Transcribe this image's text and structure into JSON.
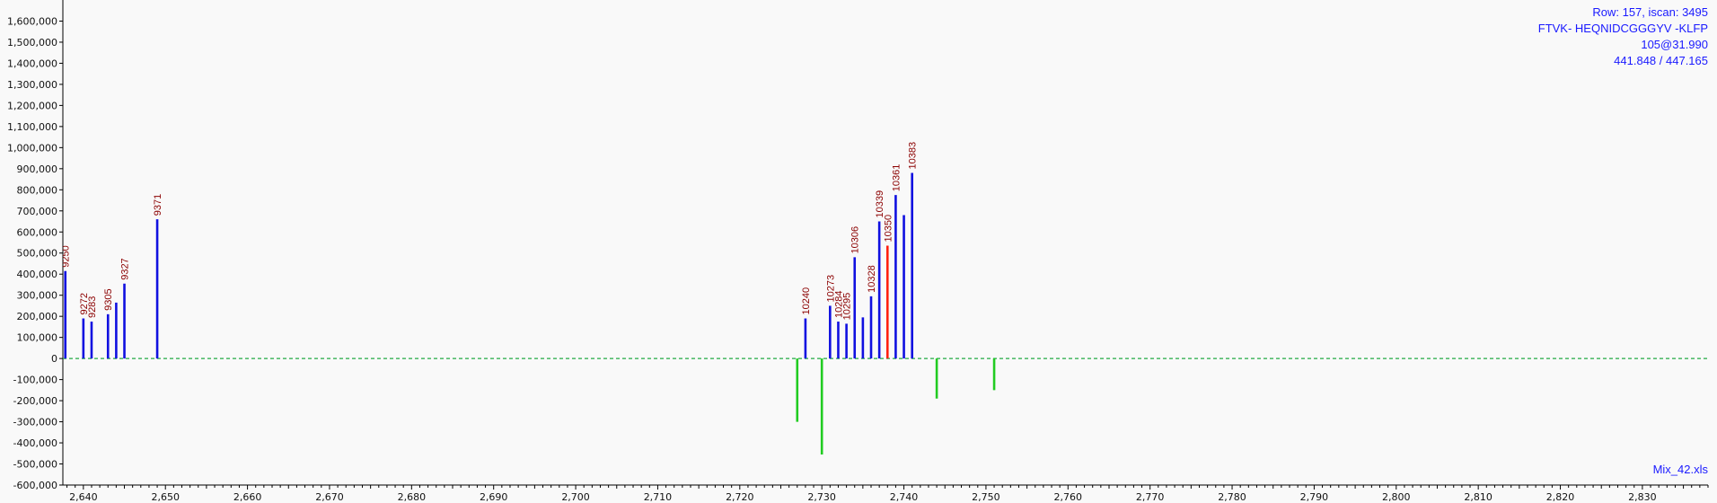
{
  "info": {
    "row_line": "Row: 157, iscan: 3495",
    "sequence_line": "FTVK- HEQNIDCGGGYV -KLFP",
    "charge_line": "105@31.990",
    "mz_line": "441.848 / 447.165"
  },
  "footer": {
    "filename": "Mix_42.xls"
  },
  "colors": {
    "positive": "#1010e0",
    "highlight": "#ff2010",
    "negative": "#22cc22",
    "baseline": "#22aa44",
    "label": "#8b0000"
  },
  "chart_data": {
    "type": "bar",
    "xlim": [
      2637.5,
      2838
    ],
    "ylim": [
      -600000,
      1700000
    ],
    "x_ticks": [
      2640,
      2650,
      2660,
      2670,
      2680,
      2690,
      2700,
      2710,
      2720,
      2730,
      2740,
      2750,
      2760,
      2770,
      2780,
      2790,
      2800,
      2810,
      2820,
      2830
    ],
    "x_tick_labels": [
      "2,640",
      "2,650",
      "2,660",
      "2,670",
      "2,680",
      "2,690",
      "2,700",
      "2,710",
      "2,720",
      "2,730",
      "2,740",
      "2,750",
      "2,760",
      "2,770",
      "2,780",
      "2,790",
      "2,800",
      "2,810",
      "2,820",
      "2,830"
    ],
    "y_ticks": [
      1600000,
      1500000,
      1400000,
      1300000,
      1200000,
      1100000,
      1000000,
      900000,
      800000,
      700000,
      600000,
      500000,
      400000,
      300000,
      200000,
      100000,
      0,
      -100000,
      -200000,
      -300000,
      -400000,
      -500000,
      -600000
    ],
    "y_tick_labels": [
      "1,600,000",
      "1,500,000",
      "1,400,000",
      "1,300,000",
      "1,200,000",
      "1,100,000",
      "1,000,000",
      "900,000",
      "800,000",
      "700,000",
      "600,000",
      "500,000",
      "400,000",
      "300,000",
      "200,000",
      "100,000",
      "0",
      "-100,000",
      "-200,000",
      "-300,000",
      "-400,000",
      "-500,000",
      "-600,000"
    ],
    "grid": false,
    "series": [
      {
        "kind": "positive",
        "points": [
          {
            "x": 2637.8,
            "y": 415000,
            "label": "9250"
          },
          {
            "x": 2640.0,
            "y": 190000,
            "label": "9272"
          },
          {
            "x": 2641.0,
            "y": 175000,
            "label": "9283"
          },
          {
            "x": 2643.0,
            "y": 210000,
            "label": "9305"
          },
          {
            "x": 2644.0,
            "y": 265000,
            "label": ""
          },
          {
            "x": 2645.0,
            "y": 355000,
            "label": "9327"
          },
          {
            "x": 2649.0,
            "y": 660000,
            "label": "9371"
          },
          {
            "x": 2728.0,
            "y": 190000,
            "label": "10240"
          },
          {
            "x": 2731.0,
            "y": 250000,
            "label": "10273"
          },
          {
            "x": 2732.0,
            "y": 175000,
            "label": "10284"
          },
          {
            "x": 2733.0,
            "y": 165000,
            "label": "10295"
          },
          {
            "x": 2734.0,
            "y": 480000,
            "label": "10306"
          },
          {
            "x": 2735.0,
            "y": 195000,
            "label": ""
          },
          {
            "x": 2736.0,
            "y": 295000,
            "label": "10328"
          },
          {
            "x": 2737.0,
            "y": 650000,
            "label": "10339"
          },
          {
            "x": 2739.0,
            "y": 775000,
            "label": "10361"
          },
          {
            "x": 2740.0,
            "y": 680000,
            "label": ""
          },
          {
            "x": 2741.0,
            "y": 880000,
            "label": "10383"
          }
        ]
      },
      {
        "kind": "highlight",
        "points": [
          {
            "x": 2738.0,
            "y": 535000,
            "label": "10350"
          }
        ]
      },
      {
        "kind": "negative",
        "points": [
          {
            "x": 2727.0,
            "y": -300000,
            "label": ""
          },
          {
            "x": 2730.0,
            "y": -455000,
            "label": ""
          },
          {
            "x": 2744.0,
            "y": -190000,
            "label": ""
          },
          {
            "x": 2751.0,
            "y": -150000,
            "label": ""
          }
        ]
      }
    ]
  }
}
